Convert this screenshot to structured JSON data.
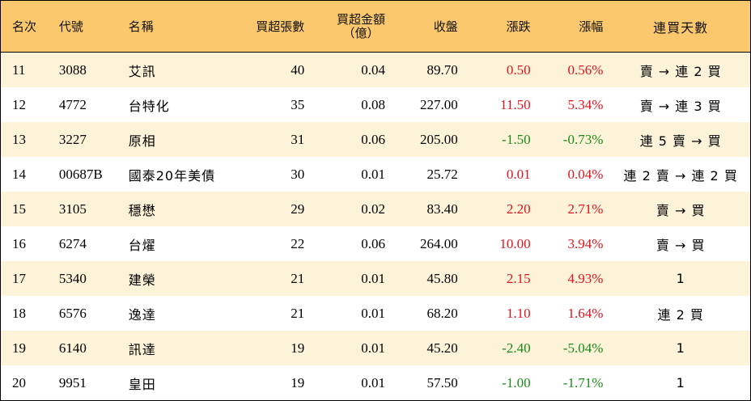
{
  "colors": {
    "header_bg": "#fcc86e",
    "odd_row_bg": "#fdf3d8",
    "even_row_bg": "#ffffff",
    "up": "#e0141e",
    "down": "#1a8a1a"
  },
  "header": {
    "rank": "名次",
    "code": "代號",
    "name": "名稱",
    "lots": "買超張數",
    "amount_line1": "買超金額",
    "amount_line2": "（億）",
    "close": "收盤",
    "change": "漲跌",
    "pct": "漲幅",
    "streak": "連買天數"
  },
  "rows": [
    {
      "rank": "11",
      "code": "3088",
      "name": "艾訊",
      "lots": "40",
      "amount": "0.04",
      "close": "89.70",
      "change": "0.50",
      "pct": "0.56%",
      "dir": "up",
      "streak": "賣 → 連 2 買"
    },
    {
      "rank": "12",
      "code": "4772",
      "name": "台特化",
      "lots": "35",
      "amount": "0.08",
      "close": "227.00",
      "change": "11.50",
      "pct": "5.34%",
      "dir": "up",
      "streak": "賣 → 連 3 買"
    },
    {
      "rank": "13",
      "code": "3227",
      "name": "原相",
      "lots": "31",
      "amount": "0.06",
      "close": "205.00",
      "change": "-1.50",
      "pct": "-0.73%",
      "dir": "down",
      "streak": "連 5 賣 → 買"
    },
    {
      "rank": "14",
      "code": "00687B",
      "name": "國泰20年美債",
      "lots": "30",
      "amount": "0.01",
      "close": "25.72",
      "change": "0.01",
      "pct": "0.04%",
      "dir": "up",
      "streak": "連 2 賣 → 連 2 買"
    },
    {
      "rank": "15",
      "code": "3105",
      "name": "穩懋",
      "lots": "29",
      "amount": "0.02",
      "close": "83.40",
      "change": "2.20",
      "pct": "2.71%",
      "dir": "up",
      "streak": "賣 → 買"
    },
    {
      "rank": "16",
      "code": "6274",
      "name": "台燿",
      "lots": "22",
      "amount": "0.06",
      "close": "264.00",
      "change": "10.00",
      "pct": "3.94%",
      "dir": "up",
      "streak": "賣 → 買"
    },
    {
      "rank": "17",
      "code": "5340",
      "name": "建榮",
      "lots": "21",
      "amount": "0.01",
      "close": "45.80",
      "change": "2.15",
      "pct": "4.93%",
      "dir": "up",
      "streak": "1"
    },
    {
      "rank": "18",
      "code": "6576",
      "name": "逸達",
      "lots": "21",
      "amount": "0.01",
      "close": "68.20",
      "change": "1.10",
      "pct": "1.64%",
      "dir": "up",
      "streak": "連 2 買"
    },
    {
      "rank": "19",
      "code": "6140",
      "name": "訊達",
      "lots": "19",
      "amount": "0.01",
      "close": "45.20",
      "change": "-2.40",
      "pct": "-5.04%",
      "dir": "down",
      "streak": "1"
    },
    {
      "rank": "20",
      "code": "9951",
      "name": "皇田",
      "lots": "19",
      "amount": "0.01",
      "close": "57.50",
      "change": "-1.00",
      "pct": "-1.71%",
      "dir": "down",
      "streak": "1"
    }
  ]
}
